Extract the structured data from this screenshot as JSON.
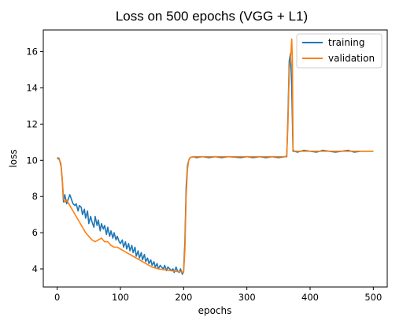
{
  "chart_data": {
    "type": "line",
    "title": "Loss on 500 epochs (VGG + L1)",
    "xlabel": "epochs",
    "ylabel": "loss",
    "xlim": [
      -22,
      522
    ],
    "ylim": [
      3.0,
      17.2
    ],
    "xticks": [
      0,
      100,
      200,
      300,
      400,
      500
    ],
    "yticks": [
      4,
      6,
      8,
      10,
      12,
      14,
      16
    ],
    "grid": false,
    "legend_position": "top-right",
    "series": [
      {
        "name": "training",
        "color": "#1f77b4",
        "x": [
          0,
          3,
          6,
          8,
          10,
          12,
          15,
          18,
          20,
          23,
          25,
          28,
          30,
          33,
          35,
          38,
          40,
          43,
          45,
          48,
          50,
          53,
          55,
          58,
          60,
          63,
          65,
          68,
          70,
          73,
          75,
          78,
          80,
          83,
          85,
          88,
          90,
          93,
          95,
          98,
          100,
          103,
          105,
          108,
          110,
          113,
          115,
          118,
          120,
          123,
          125,
          128,
          130,
          133,
          135,
          138,
          140,
          143,
          145,
          148,
          150,
          153,
          155,
          158,
          160,
          163,
          165,
          168,
          170,
          173,
          175,
          178,
          180,
          183,
          185,
          188,
          190,
          193,
          195,
          198,
          200,
          202,
          204,
          206,
          208,
          210,
          215,
          220,
          230,
          240,
          250,
          260,
          270,
          280,
          290,
          300,
          310,
          320,
          330,
          340,
          350,
          360,
          363,
          365,
          367,
          369,
          371,
          373,
          375,
          380,
          390,
          400,
          410,
          420,
          430,
          440,
          450,
          460,
          470,
          480,
          490,
          500
        ],
        "values": [
          10.15,
          10.1,
          9.7,
          8.9,
          7.7,
          8.1,
          7.6,
          7.9,
          8.1,
          7.8,
          7.6,
          7.5,
          7.6,
          7.2,
          7.5,
          7.4,
          7.0,
          7.3,
          6.8,
          7.2,
          6.5,
          6.9,
          6.6,
          6.3,
          6.9,
          6.4,
          6.7,
          6.1,
          6.5,
          6.2,
          6.4,
          5.9,
          6.3,
          5.8,
          6.1,
          5.7,
          6.0,
          5.6,
          5.8,
          5.5,
          5.4,
          5.6,
          5.2,
          5.5,
          5.1,
          5.4,
          5.0,
          5.3,
          4.9,
          5.2,
          4.7,
          5.0,
          4.6,
          4.9,
          4.5,
          4.8,
          4.4,
          4.6,
          4.3,
          4.5,
          4.2,
          4.4,
          4.1,
          4.3,
          4.0,
          4.2,
          4.1,
          4.0,
          4.2,
          3.9,
          4.1,
          4.0,
          3.9,
          4.0,
          3.8,
          4.1,
          3.9,
          3.8,
          4.0,
          3.7,
          3.9,
          5.5,
          8.5,
          9.7,
          10.0,
          10.15,
          10.2,
          10.15,
          10.2,
          10.15,
          10.2,
          10.15,
          10.2,
          10.18,
          10.15,
          10.2,
          10.15,
          10.2,
          10.15,
          10.2,
          10.15,
          10.2,
          10.2,
          12.5,
          15.5,
          15.9,
          14.0,
          10.5,
          10.5,
          10.45,
          10.55,
          10.5,
          10.45,
          10.55,
          10.5,
          10.45,
          10.5,
          10.55,
          10.45,
          10.5,
          10.5,
          10.5
        ]
      },
      {
        "name": "validation",
        "color": "#ff7f0e",
        "x": [
          0,
          3,
          6,
          8,
          10,
          12,
          15,
          20,
          25,
          30,
          35,
          40,
          45,
          50,
          55,
          60,
          65,
          70,
          75,
          80,
          85,
          90,
          95,
          100,
          110,
          120,
          130,
          140,
          150,
          160,
          170,
          180,
          190,
          195,
          200,
          202,
          204,
          206,
          208,
          210,
          215,
          220,
          240,
          260,
          280,
          300,
          320,
          340,
          360,
          363,
          365,
          367,
          369,
          371,
          372,
          373,
          375,
          380,
          400,
          420,
          440,
          460,
          480,
          500
        ],
        "values": [
          10.1,
          10.05,
          9.8,
          9.0,
          7.9,
          7.7,
          7.8,
          7.5,
          7.2,
          6.9,
          6.6,
          6.3,
          6.0,
          5.8,
          5.6,
          5.5,
          5.6,
          5.7,
          5.5,
          5.5,
          5.3,
          5.2,
          5.2,
          5.1,
          4.9,
          4.7,
          4.5,
          4.3,
          4.1,
          4.0,
          3.95,
          3.9,
          3.85,
          3.85,
          3.8,
          5.0,
          8.0,
          9.5,
          10.0,
          10.15,
          10.2,
          10.2,
          10.2,
          10.2,
          10.2,
          10.2,
          10.2,
          10.2,
          10.2,
          10.25,
          12.0,
          15.0,
          15.6,
          16.7,
          15.5,
          10.6,
          10.5,
          10.5,
          10.5,
          10.5,
          10.5,
          10.5,
          10.5,
          10.5
        ]
      }
    ]
  }
}
